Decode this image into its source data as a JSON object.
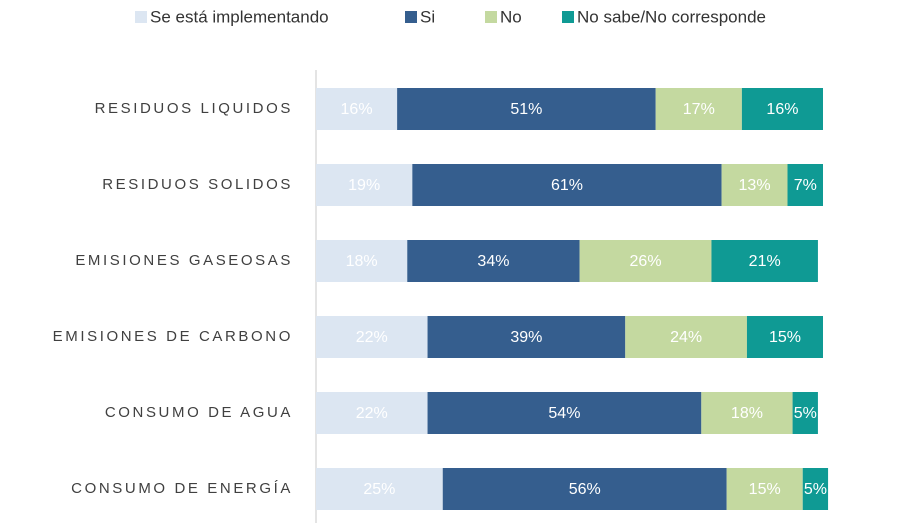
{
  "chart_data": {
    "type": "stacked-bar-horizontal",
    "categories": [
      "RESIDUOS LIQUIDOS",
      "RESIDUOS SOLIDOS",
      "EMISIONES GASEOSAS",
      "EMISIONES DE CARBONO",
      "CONSUMO DE AGUA",
      "CONSUMO DE ENERGÍA"
    ],
    "xlim": [
      0,
      100
    ],
    "legend": "top",
    "series": [
      {
        "name": "Se está implementando",
        "color": "#dce6f2",
        "values": [
          16,
          19,
          18,
          22,
          22,
          25
        ],
        "value_labels": [
          "16%",
          "19%",
          "18%",
          "22%",
          "22%",
          "25%"
        ]
      },
      {
        "name": "Si",
        "color": "#355e8e",
        "values": [
          51,
          61,
          34,
          39,
          54,
          56
        ],
        "value_labels": [
          "51%",
          "61%",
          "34%",
          "39%",
          "54%",
          "56%"
        ]
      },
      {
        "name": "No",
        "color": "#c4d9a0",
        "values": [
          17,
          13,
          26,
          24,
          18,
          15
        ],
        "value_labels": [
          "17%",
          "13%",
          "26%",
          "24%",
          "18%",
          "15%"
        ]
      },
      {
        "name": "No sabe/No corresponde",
        "color": "#0f9a94",
        "values": [
          16,
          7,
          21,
          15,
          5,
          5
        ],
        "value_labels": [
          "16%",
          "7%",
          "21%",
          "15%",
          "5%",
          "5%"
        ]
      }
    ]
  }
}
